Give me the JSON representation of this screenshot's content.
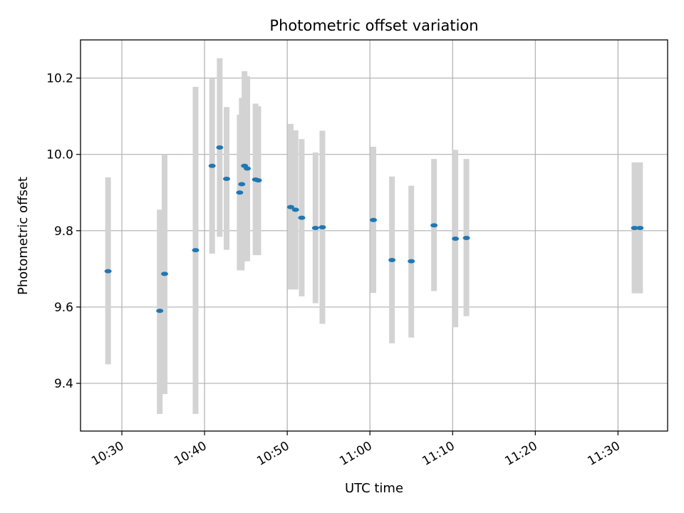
{
  "chart_data": {
    "type": "scatter",
    "title": "Photometric offset variation",
    "xlabel": "UTC time",
    "ylabel": "Photometric offset",
    "x_ticks": [
      "10:30",
      "10:40",
      "10:50",
      "11:00",
      "11:10",
      "11:20",
      "11:30"
    ],
    "y_ticks": [
      "9.4",
      "9.6",
      "9.8",
      "10.0",
      "10.2"
    ],
    "xlim": [
      "10:25:00",
      "11:36:00"
    ],
    "ylim": [
      9.275,
      10.3
    ],
    "grid": true,
    "point_color": "#1f77b4",
    "errorbar_color": "#d3d3d3",
    "points": [
      {
        "t": "10:28:20",
        "y": 9.694,
        "lo": 9.45,
        "hi": 9.94
      },
      {
        "t": "10:34:35",
        "y": 9.59,
        "lo": 9.32,
        "hi": 9.855
      },
      {
        "t": "10:35:10",
        "y": 9.687,
        "lo": 9.372,
        "hi": 10.0
      },
      {
        "t": "10:38:55",
        "y": 9.749,
        "lo": 9.32,
        "hi": 10.177
      },
      {
        "t": "10:40:55",
        "y": 9.97,
        "lo": 9.74,
        "hi": 10.198
      },
      {
        "t": "10:41:50",
        "y": 10.018,
        "lo": 9.784,
        "hi": 10.252
      },
      {
        "t": "10:42:40",
        "y": 9.936,
        "lo": 9.75,
        "hi": 10.124
      },
      {
        "t": "10:44:15",
        "y": 9.9,
        "lo": 9.696,
        "hi": 10.104
      },
      {
        "t": "10:44:30",
        "y": 9.922,
        "lo": 9.696,
        "hi": 10.148
      },
      {
        "t": "10:44:50",
        "y": 9.97,
        "lo": 9.72,
        "hi": 10.218
      },
      {
        "t": "10:45:10",
        "y": 9.963,
        "lo": 9.72,
        "hi": 10.205
      },
      {
        "t": "10:46:10",
        "y": 9.934,
        "lo": 9.736,
        "hi": 10.133
      },
      {
        "t": "10:46:30",
        "y": 9.932,
        "lo": 9.736,
        "hi": 10.126
      },
      {
        "t": "10:50:25",
        "y": 9.862,
        "lo": 9.646,
        "hi": 10.08
      },
      {
        "t": "10:51:00",
        "y": 9.855,
        "lo": 9.646,
        "hi": 10.063
      },
      {
        "t": "10:51:45",
        "y": 9.834,
        "lo": 9.628,
        "hi": 10.04
      },
      {
        "t": "10:53:25",
        "y": 9.807,
        "lo": 9.61,
        "hi": 10.005
      },
      {
        "t": "10:54:15",
        "y": 9.809,
        "lo": 9.556,
        "hi": 10.062
      },
      {
        "t": "11:00:25",
        "y": 9.828,
        "lo": 9.637,
        "hi": 10.02
      },
      {
        "t": "11:02:40",
        "y": 9.723,
        "lo": 9.505,
        "hi": 9.942
      },
      {
        "t": "11:05:00",
        "y": 9.72,
        "lo": 9.52,
        "hi": 9.918
      },
      {
        "t": "11:07:45",
        "y": 9.814,
        "lo": 9.642,
        "hi": 9.988
      },
      {
        "t": "11:10:20",
        "y": 9.779,
        "lo": 9.547,
        "hi": 10.012
      },
      {
        "t": "11:11:40",
        "y": 9.781,
        "lo": 9.576,
        "hi": 9.988
      },
      {
        "t": "11:32:00",
        "y": 9.807,
        "lo": 9.636,
        "hi": 9.979
      },
      {
        "t": "11:32:40",
        "y": 9.807,
        "lo": 9.636,
        "hi": 9.979
      }
    ]
  }
}
